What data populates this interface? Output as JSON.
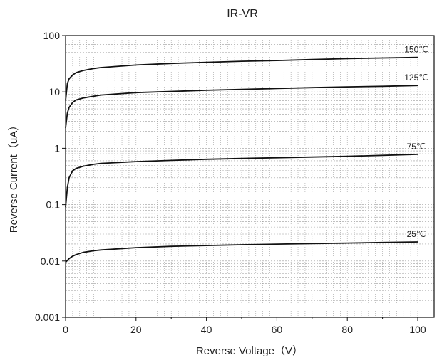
{
  "chart_data": {
    "type": "line",
    "title": "IR-VR",
    "xlabel": "Reverse Voltage（V）",
    "ylabel": "Reverse Current（uA）",
    "xscale": "linear",
    "yscale": "log",
    "xlim": [
      0,
      100
    ],
    "ylim": [
      0.001,
      100
    ],
    "xticks": [
      0,
      20,
      40,
      60,
      80,
      100
    ],
    "xtick_labels": [
      "0",
      "20",
      "40",
      "60",
      "80",
      "100"
    ],
    "yticks": [
      0.001,
      0.01,
      0.1,
      1,
      10,
      100
    ],
    "ytick_labels": [
      "0.001",
      "0.01",
      "0.1",
      "1",
      "10",
      "100"
    ],
    "grid": true,
    "line_color": "#111111",
    "grid_color": "#9a9a9a",
    "series": [
      {
        "name": "150℃",
        "x": [
          0,
          0.5,
          1,
          2,
          3,
          5,
          8,
          10,
          20,
          30,
          40,
          50,
          60,
          70,
          80,
          90,
          100
        ],
        "y": [
          7,
          14,
          17,
          20,
          22,
          24,
          26,
          27,
          30,
          32,
          33.5,
          35,
          36,
          37.5,
          39,
          40,
          41
        ]
      },
      {
        "name": "125℃",
        "x": [
          0,
          0.5,
          1,
          2,
          3,
          5,
          8,
          10,
          20,
          30,
          40,
          50,
          60,
          70,
          80,
          90,
          100
        ],
        "y": [
          2.3,
          4.2,
          5.3,
          6.5,
          7.2,
          7.8,
          8.4,
          8.8,
          9.7,
          10.2,
          10.7,
          11.1,
          11.5,
          11.9,
          12.3,
          12.6,
          13
        ]
      },
      {
        "name": "75℃",
        "x": [
          0,
          0.5,
          1,
          2,
          3,
          5,
          8,
          10,
          20,
          30,
          40,
          50,
          60,
          70,
          80,
          90,
          100
        ],
        "y": [
          0.09,
          0.2,
          0.3,
          0.4,
          0.44,
          0.48,
          0.52,
          0.54,
          0.58,
          0.61,
          0.64,
          0.66,
          0.68,
          0.7,
          0.72,
          0.75,
          0.78
        ]
      },
      {
        "name": "25℃",
        "x": [
          0,
          1,
          2,
          3,
          5,
          8,
          10,
          20,
          30,
          40,
          50,
          60,
          70,
          80,
          90,
          100
        ],
        "y": [
          0.0095,
          0.011,
          0.0122,
          0.013,
          0.0142,
          0.0152,
          0.0157,
          0.0172,
          0.0182,
          0.0188,
          0.0194,
          0.0199,
          0.0204,
          0.0208,
          0.0213,
          0.0218
        ]
      }
    ]
  }
}
